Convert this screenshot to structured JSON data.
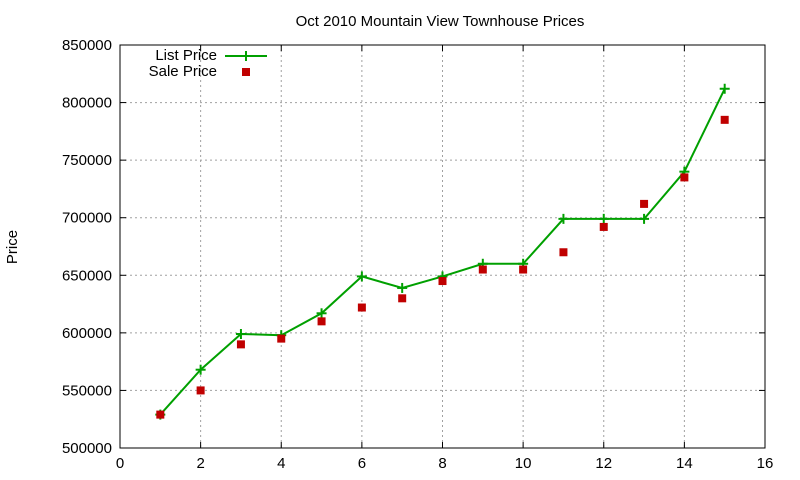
{
  "chart_data": {
    "type": "line",
    "title": "Oct 2010 Mountain View Townhouse Prices",
    "xlabel": "",
    "ylabel": "Price",
    "xlim": [
      0,
      16
    ],
    "ylim": [
      500000,
      850000
    ],
    "xticks": [
      0,
      2,
      4,
      6,
      8,
      10,
      12,
      14,
      16
    ],
    "yticks": [
      500000,
      550000,
      600000,
      650000,
      700000,
      750000,
      800000,
      850000
    ],
    "grid": true,
    "legend_position": "top-left",
    "series": [
      {
        "name": "List Price",
        "style": "line+cross",
        "color": "#00a000",
        "x": [
          1,
          2,
          3,
          4,
          5,
          6,
          7,
          8,
          9,
          10,
          11,
          12,
          13,
          14,
          15
        ],
        "y": [
          529000,
          568000,
          599000,
          598000,
          617000,
          649000,
          639000,
          649000,
          660000,
          660000,
          699000,
          699000,
          699000,
          740000,
          812000
        ]
      },
      {
        "name": "Sale Price",
        "style": "square",
        "color": "#c00000",
        "x": [
          1,
          2,
          3,
          4,
          5,
          6,
          7,
          8,
          9,
          10,
          11,
          12,
          13,
          14,
          15
        ],
        "y": [
          529000,
          550000,
          590000,
          595000,
          610000,
          622000,
          630000,
          645000,
          655000,
          655000,
          670000,
          692000,
          712000,
          735000,
          785000
        ]
      }
    ]
  }
}
